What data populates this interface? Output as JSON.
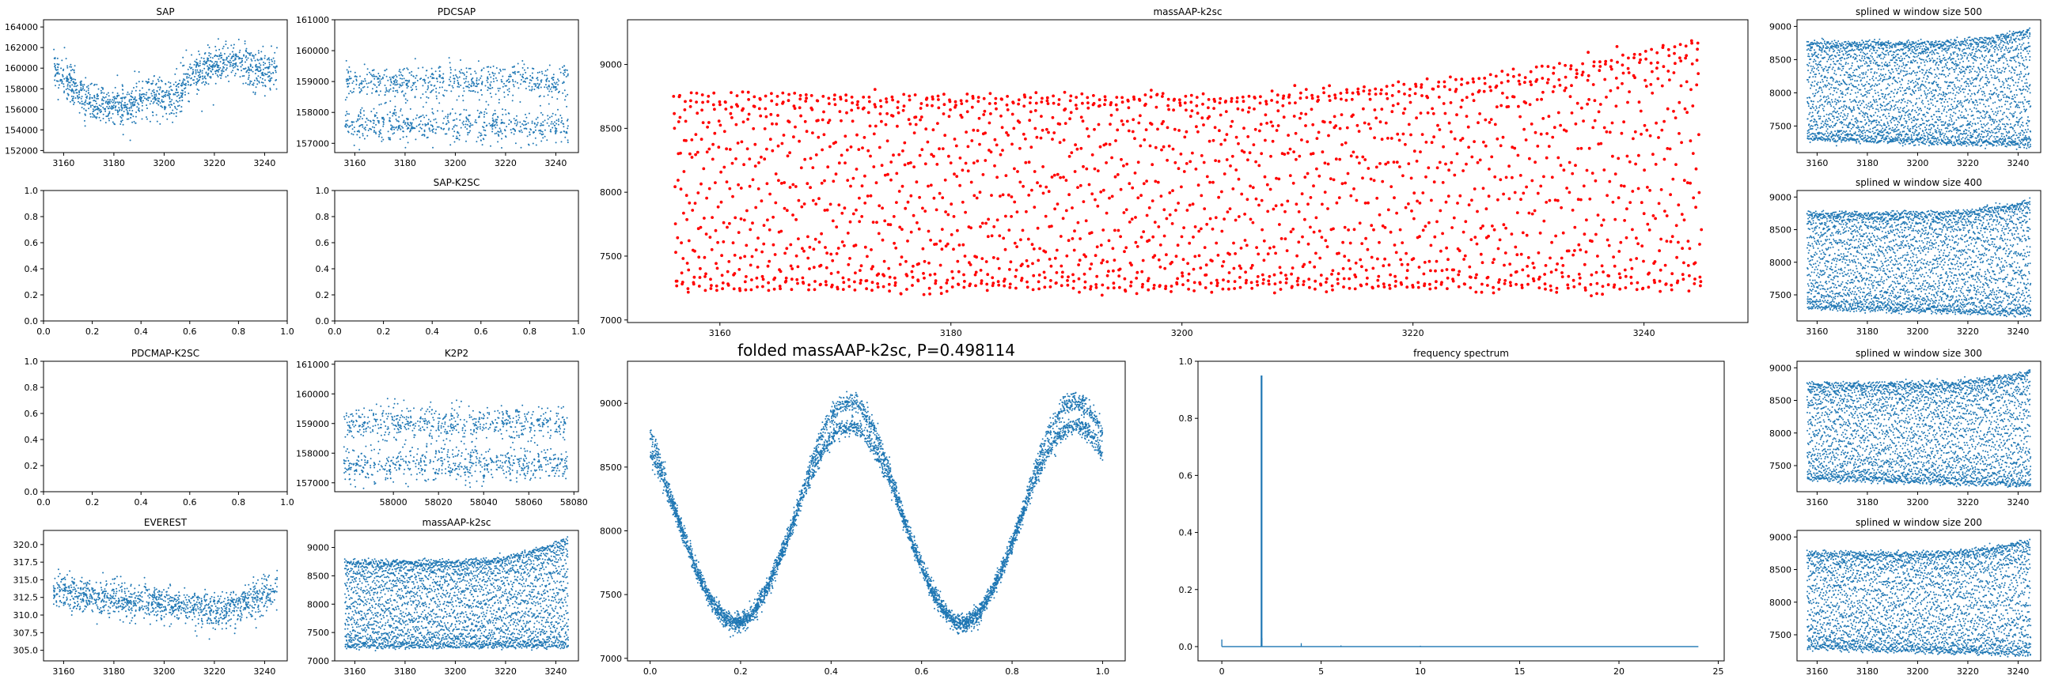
{
  "chart_data": [
    {
      "id": "sap",
      "type": "scatter",
      "title": "SAP",
      "xlim": [
        3152,
        3249
      ],
      "ylim": [
        151800,
        164700
      ],
      "xticks": [
        3160,
        3180,
        3200,
        3220,
        3240
      ],
      "yticks": [
        152000,
        154000,
        156000,
        158000,
        160000,
        162000,
        164000
      ],
      "color": "#1f77b4",
      "series": [
        {
          "x_start": 3156,
          "x_end": 3245,
          "trend": [
            [
              3156,
              160200
            ],
            [
              3160,
              158800
            ],
            [
              3165,
              157800
            ],
            [
              3170,
              157000
            ],
            [
              3175,
              156600
            ],
            [
              3180,
              156300
            ],
            [
              3185,
              156500
            ],
            [
              3190,
              157000
            ],
            [
              3195,
              157400
            ],
            [
              3200,
              157000
            ],
            [
              3205,
              157200
            ],
            [
              3210,
              159200
            ],
            [
              3215,
              159800
            ],
            [
              3220,
              160300
            ],
            [
              3225,
              160700
            ],
            [
              3230,
              160500
            ],
            [
              3235,
              159900
            ],
            [
              3240,
              159800
            ],
            [
              3245,
              160000
            ]
          ],
          "spread": 1900,
          "n": 1200
        }
      ]
    },
    {
      "id": "pdcsap",
      "type": "scatter",
      "title": "PDCSAP",
      "xlim": [
        3152,
        3249
      ],
      "ylim": [
        156700,
        161000
      ],
      "xticks": [
        3160,
        3180,
        3200,
        3220,
        3240
      ],
      "yticks": [
        157000,
        158000,
        159000,
        160000,
        161000
      ],
      "color": "#1f77b4",
      "series": [
        {
          "x_start": 3156,
          "x_end": 3245,
          "trend": [
            [
              3156,
              158300
            ],
            [
              3245,
              158300
            ]
          ],
          "spread": 800,
          "n": 1200,
          "bands": [
            157600,
            159000
          ]
        }
      ]
    },
    {
      "id": "empty1",
      "type": "scatter",
      "title": "",
      "xlim": [
        0,
        1
      ],
      "ylim": [
        0,
        1
      ],
      "xticks": [
        0.0,
        0.2,
        0.4,
        0.6,
        0.8,
        1.0
      ],
      "yticks": [
        0.0,
        0.2,
        0.4,
        0.6,
        0.8,
        1.0
      ],
      "series": []
    },
    {
      "id": "sapk2sc",
      "type": "scatter",
      "title": "SAP-K2SC",
      "xlim": [
        0,
        1
      ],
      "ylim": [
        0,
        1
      ],
      "xticks": [
        0.0,
        0.2,
        0.4,
        0.6,
        0.8,
        1.0
      ],
      "yticks": [
        0.0,
        0.2,
        0.4,
        0.6,
        0.8,
        1.0
      ],
      "series": []
    },
    {
      "id": "pdcmapk2sc",
      "type": "scatter",
      "title": "PDCMAP-K2SC",
      "xlim": [
        0,
        1
      ],
      "ylim": [
        0,
        1
      ],
      "xticks": [
        0.0,
        0.2,
        0.4,
        0.6,
        0.8,
        1.0
      ],
      "yticks": [
        0.0,
        0.2,
        0.4,
        0.6,
        0.8,
        1.0
      ],
      "series": []
    },
    {
      "id": "k2p2",
      "type": "scatter",
      "title": "K2P2",
      "xlim": [
        57974,
        58082
      ],
      "ylim": [
        156700,
        161100
      ],
      "xticks": [
        58000,
        58020,
        58040,
        58060,
        58080
      ],
      "yticks": [
        157000,
        158000,
        159000,
        160000,
        161000
      ],
      "color": "#1f77b4",
      "series": [
        {
          "x_start": 57978,
          "x_end": 58077,
          "trend": [
            [
              57978,
              158300
            ],
            [
              58077,
              158300
            ]
          ],
          "spread": 800,
          "n": 1200,
          "bands": [
            157600,
            159000
          ]
        }
      ]
    },
    {
      "id": "everest",
      "type": "scatter",
      "title": "EVEREST",
      "xlim": [
        3152,
        3249
      ],
      "ylim": [
        303.5,
        322.0
      ],
      "xticks": [
        3160,
        3180,
        3200,
        3220,
        3240
      ],
      "yticks": [
        305.0,
        307.5,
        310.0,
        312.5,
        315.0,
        317.5,
        320.0
      ],
      "color": "#1f77b4",
      "series": [
        {
          "x_start": 3156,
          "x_end": 3245,
          "trend": [
            [
              3156,
              313.5
            ],
            [
              3170,
              312.5
            ],
            [
              3185,
              312.0
            ],
            [
              3200,
              311.8
            ],
            [
              3215,
              310.8
            ],
            [
              3225,
              310.5
            ],
            [
              3235,
              312.0
            ],
            [
              3245,
              313.5
            ]
          ],
          "spread": 2.5,
          "n": 1200
        }
      ]
    },
    {
      "id": "massaap_small",
      "type": "scatter",
      "title": "massAAP-k2sc",
      "xlim": [
        3152,
        3249
      ],
      "ylim": [
        7000,
        9300
      ],
      "xticks": [
        3160,
        3180,
        3200,
        3220,
        3240
      ],
      "yticks": [
        7000,
        7500,
        8000,
        8500,
        9000
      ],
      "color": "#1f77b4",
      "series": [
        {
          "x_start": 3156,
          "x_end": 3245,
          "low": 7250,
          "high": 8750,
          "high_end": 9150,
          "n": 3500
        }
      ]
    },
    {
      "id": "massaap_main",
      "type": "scatter",
      "title": "massAAP-k2sc",
      "xlim": [
        3152,
        3249
      ],
      "ylim": [
        6980,
        9350
      ],
      "xticks": [
        3160,
        3180,
        3200,
        3220,
        3240
      ],
      "yticks": [
        7000,
        7500,
        8000,
        8500,
        9000
      ],
      "color": "#ff0000",
      "series": [
        {
          "x_start": 3156,
          "x_end": 3245,
          "low": 7250,
          "high": 8750,
          "high_end": 9200,
          "n": 2400,
          "marker": "dot"
        }
      ]
    },
    {
      "id": "folded",
      "type": "scatter",
      "title": "folded massAAP-k2sc, P=0.498114",
      "xlim": [
        -0.05,
        1.05
      ],
      "ylim": [
        6980,
        9330
      ],
      "xticks": [
        0.0,
        0.2,
        0.4,
        0.6,
        0.8,
        1.0
      ],
      "yticks": [
        7000,
        7500,
        8000,
        8500,
        9000
      ],
      "color": "#1f77b4",
      "series": [
        {
          "phase_period": 0.5,
          "phase_max": [
            0.44,
            0.94
          ],
          "phase_min": [
            0.2,
            0.7
          ],
          "low": 7280,
          "high": 8820,
          "high_outer": 9050,
          "n": 5000
        }
      ]
    },
    {
      "id": "spectrum",
      "type": "line",
      "title": "frequency spectrum",
      "xlim": [
        -1.2,
        25.3
      ],
      "ylim": [
        -0.05,
        1.0
      ],
      "xticks": [
        0,
        5,
        10,
        15,
        20,
        25
      ],
      "yticks": [
        0.0,
        0.2,
        0.4,
        0.6,
        0.8,
        1.0
      ],
      "color": "#1f77b4",
      "series": [
        {
          "x_max": 24,
          "baseline": 0.0,
          "peaks": [
            [
              0.0,
              0.025
            ],
            [
              2.0,
              0.95
            ],
            [
              2.02,
              0.03
            ],
            [
              4.0,
              0.012
            ],
            [
              6.0,
              0.004
            ],
            [
              10.0,
              0.003
            ]
          ]
        }
      ]
    },
    {
      "id": "spline500",
      "type": "scatter",
      "title": "splined w window size 500",
      "xlim": [
        3152,
        3249
      ],
      "ylim": [
        7100,
        9100
      ],
      "xticks": [
        3160,
        3180,
        3200,
        3220,
        3240
      ],
      "yticks": [
        7500,
        8000,
        8500,
        9000
      ],
      "color": "#1f77b4",
      "series": [
        {
          "x_start": 3156,
          "x_end": 3245,
          "low": 7300,
          "low_end": 7200,
          "high": 8750,
          "high_end": 8950,
          "n": 3500
        }
      ]
    },
    {
      "id": "spline400",
      "type": "scatter",
      "title": "splined w window size 400",
      "xlim": [
        3152,
        3249
      ],
      "ylim": [
        7100,
        9100
      ],
      "xticks": [
        3160,
        3180,
        3200,
        3220,
        3240
      ],
      "yticks": [
        7500,
        8000,
        8500,
        9000
      ],
      "color": "#1f77b4",
      "series": [
        {
          "x_start": 3156,
          "x_end": 3245,
          "low": 7300,
          "low_end": 7200,
          "high": 8750,
          "high_end": 8950,
          "n": 3500
        }
      ]
    },
    {
      "id": "spline300",
      "type": "scatter",
      "title": "splined w window size 300",
      "xlim": [
        3152,
        3249
      ],
      "ylim": [
        7100,
        9100
      ],
      "xticks": [
        3160,
        3180,
        3200,
        3220,
        3240
      ],
      "yticks": [
        7500,
        8000,
        8500,
        9000
      ],
      "color": "#1f77b4",
      "series": [
        {
          "x_start": 3156,
          "x_end": 3245,
          "low": 7300,
          "low_end": 7200,
          "high": 8750,
          "high_end": 8950,
          "n": 3500
        }
      ]
    },
    {
      "id": "spline200",
      "type": "scatter",
      "title": "splined w window size 200",
      "xlim": [
        3152,
        3249
      ],
      "ylim": [
        7100,
        9100
      ],
      "xticks": [
        3160,
        3180,
        3200,
        3220,
        3240
      ],
      "yticks": [
        7500,
        8000,
        8500,
        9000
      ],
      "color": "#1f77b4",
      "series": [
        {
          "x_start": 3156,
          "x_end": 3245,
          "low": 7300,
          "low_end": 7200,
          "high": 8750,
          "high_end": 8950,
          "n": 3500
        }
      ]
    }
  ]
}
